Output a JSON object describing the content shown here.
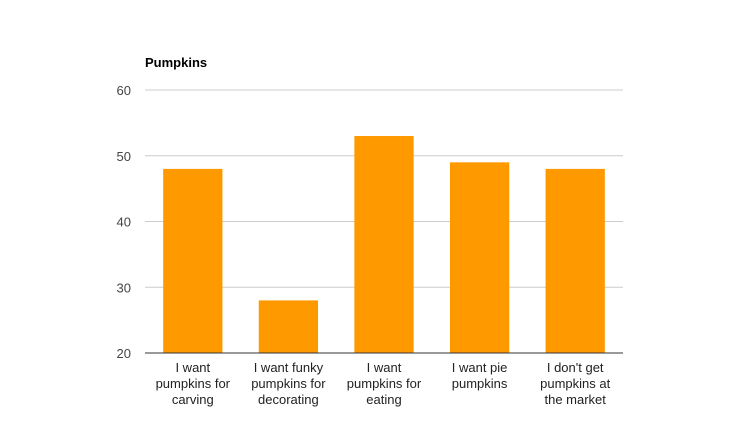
{
  "chart_data": {
    "type": "bar",
    "title": "Pumpkins",
    "xlabel": "",
    "ylabel": "",
    "categories": [
      [
        "I want",
        "pumpkins for",
        "carving"
      ],
      [
        "I want funky",
        "pumpkins for",
        "decorating"
      ],
      [
        "I want",
        "pumpkins for",
        "eating"
      ],
      [
        "I want pie",
        "pumpkins"
      ],
      [
        "I don't get",
        "pumpkins at",
        "the market"
      ]
    ],
    "values": [
      48,
      28,
      53,
      49,
      48
    ],
    "ylim": [
      20,
      60
    ],
    "yticks": [
      "20",
      "30",
      "40",
      "50",
      "60"
    ],
    "grid": true,
    "legend": "none",
    "bar_color": "#ff9900",
    "grid_color": "#cccccc",
    "axis_color": "#333333"
  }
}
